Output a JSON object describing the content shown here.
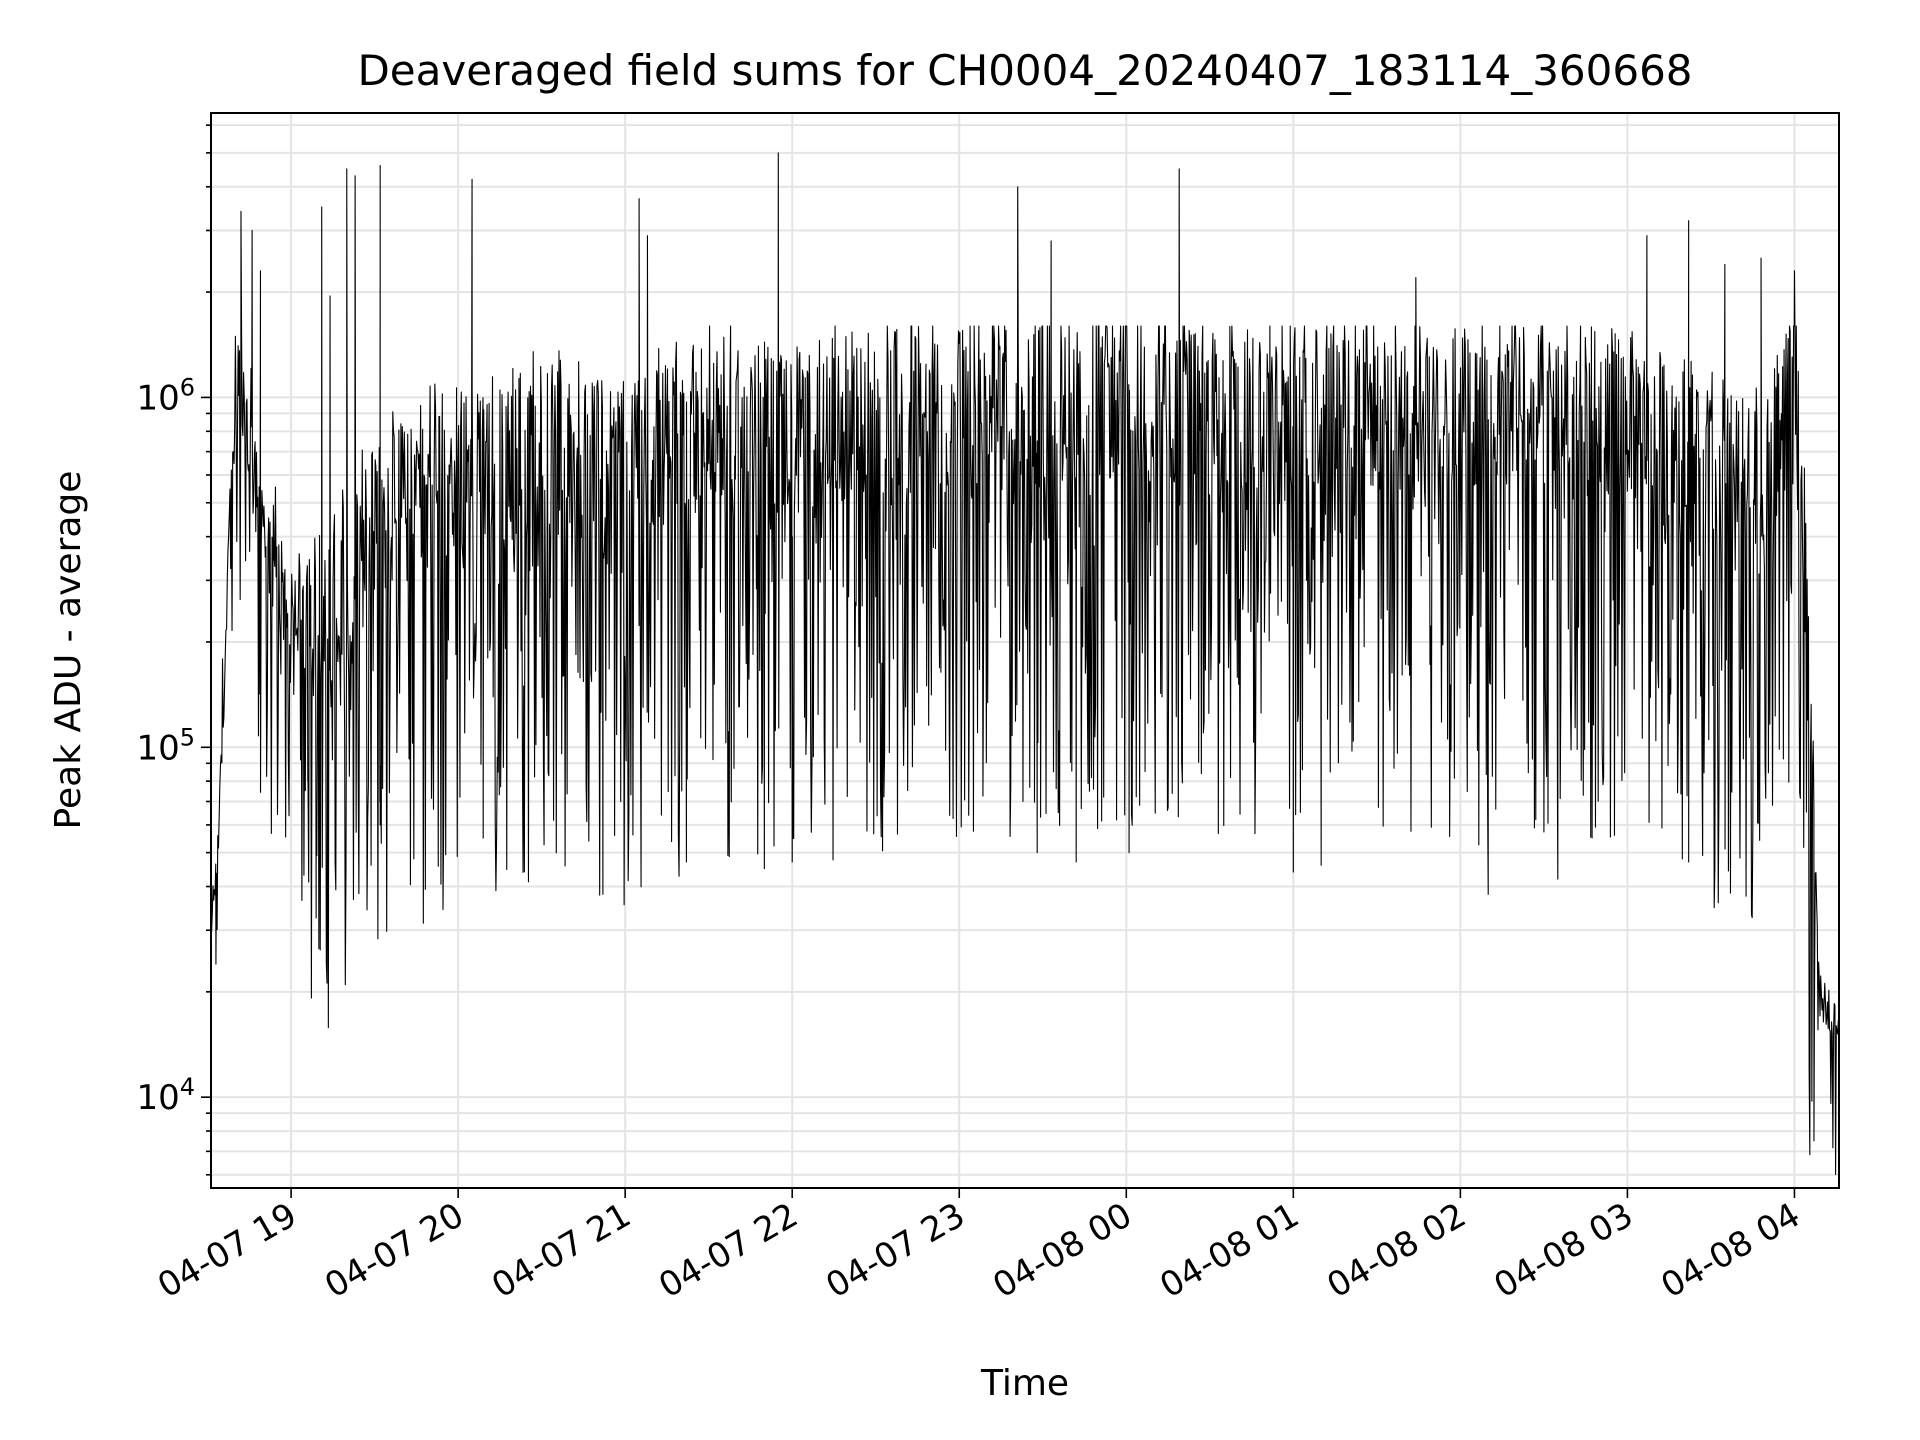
{
  "chart_data": {
    "type": "line",
    "title": "Deaveraged field sums for CH0004_20240407_183114_360668",
    "xlabel": "Time",
    "ylabel": "Peak ADU - average",
    "yscale": "log",
    "grid": true,
    "grid_minor": true,
    "line_color": "#000000",
    "xlim": [
      "2024-04-07T18:31:14",
      "2024-04-08T04:16:00"
    ],
    "ylim": [
      5500,
      6500000
    ],
    "x_ticks": [
      {
        "value": "2024-04-07T19:00:00",
        "label": "04-07 19"
      },
      {
        "value": "2024-04-07T20:00:00",
        "label": "04-07 20"
      },
      {
        "value": "2024-04-07T21:00:00",
        "label": "04-07 21"
      },
      {
        "value": "2024-04-07T22:00:00",
        "label": "04-07 22"
      },
      {
        "value": "2024-04-07T23:00:00",
        "label": "04-07 23"
      },
      {
        "value": "2024-04-08T00:00:00",
        "label": "04-08 00"
      },
      {
        "value": "2024-04-08T01:00:00",
        "label": "04-08 01"
      },
      {
        "value": "2024-04-08T02:00:00",
        "label": "04-08 02"
      },
      {
        "value": "2024-04-08T03:00:00",
        "label": "04-08 03"
      },
      {
        "value": "2024-04-08T04:00:00",
        "label": "04-08 04"
      }
    ],
    "y_ticks": [
      {
        "value": 10000,
        "base": "10",
        "exp": "4"
      },
      {
        "value": 100000,
        "base": "10",
        "exp": "5"
      },
      {
        "value": 1000000,
        "base": "10",
        "exp": "6"
      }
    ],
    "series": [
      {
        "trend": [
          [
            "2024-04-07T18:31:14",
            30000
          ],
          [
            "2024-04-07T18:34:00",
            60000
          ],
          [
            "2024-04-07T18:36:00",
            150000
          ],
          [
            "2024-04-07T18:38:00",
            500000
          ],
          [
            "2024-04-07T18:41:00",
            1100000
          ],
          [
            "2024-04-07T18:44:00",
            900000
          ],
          [
            "2024-04-07T18:48:00",
            500000
          ],
          [
            "2024-04-07T18:53:00",
            350000
          ],
          [
            "2024-04-07T19:00:00",
            260000
          ],
          [
            "2024-04-07T19:08:00",
            250000
          ],
          [
            "2024-04-07T19:30:00",
            500000
          ],
          [
            "2024-04-07T20:00:00",
            700000
          ],
          [
            "2024-04-07T20:30:00",
            800000
          ],
          [
            "2024-04-07T21:00:00",
            700000
          ],
          [
            "2024-04-07T21:30:00",
            950000
          ],
          [
            "2024-04-07T22:00:00",
            900000
          ],
          [
            "2024-04-07T22:30:00",
            1000000
          ],
          [
            "2024-04-07T23:00:00",
            1050000
          ],
          [
            "2024-04-07T23:30:00",
            1100000
          ],
          [
            "2024-04-08T00:00:00",
            1150000
          ],
          [
            "2024-04-08T00:30:00",
            1100000
          ],
          [
            "2024-04-08T01:00:00",
            1100000
          ],
          [
            "2024-04-08T01:30:00",
            1050000
          ],
          [
            "2024-04-08T02:00:00",
            1050000
          ],
          [
            "2024-04-08T02:30:00",
            1050000
          ],
          [
            "2024-04-08T03:00:00",
            1000000
          ],
          [
            "2024-04-08T03:30:00",
            700000
          ],
          [
            "2024-04-08T03:50:00",
            600000
          ],
          [
            "2024-04-08T04:00:00",
            1500000
          ],
          [
            "2024-04-08T04:03:00",
            600000
          ],
          [
            "2024-04-08T04:06:00",
            100000
          ],
          [
            "2024-04-08T04:09:00",
            20000
          ],
          [
            "2024-04-08T04:16:00",
            17000
          ]
        ],
        "spikes": [
          [
            "2024-04-07T18:42:00",
            3400000
          ],
          [
            "2024-04-07T18:46:00",
            3000000
          ],
          [
            "2024-04-07T18:49:00",
            2300000
          ],
          [
            "2024-04-07T19:11:00",
            3500000
          ],
          [
            "2024-04-07T19:14:00",
            1950000
          ],
          [
            "2024-04-07T19:20:00",
            4500000
          ],
          [
            "2024-04-07T19:23:00",
            4300000
          ],
          [
            "2024-04-07T19:32:00",
            4600000
          ],
          [
            "2024-04-07T20:05:00",
            4200000
          ],
          [
            "2024-04-07T21:05:00",
            3700000
          ],
          [
            "2024-04-07T21:08:00",
            2900000
          ],
          [
            "2024-04-07T21:55:00",
            5000000
          ],
          [
            "2024-04-07T23:21:00",
            4000000
          ],
          [
            "2024-04-07T23:33:00",
            2800000
          ],
          [
            "2024-04-08T00:19:00",
            4500000
          ],
          [
            "2024-04-08T01:44:00",
            2200000
          ],
          [
            "2024-04-08T03:07:00",
            2900000
          ],
          [
            "2024-04-08T03:22:00",
            3200000
          ],
          [
            "2024-04-08T03:35:00",
            2400000
          ],
          [
            "2024-04-08T03:48:00",
            2500000
          ],
          [
            "2024-04-08T04:00:00",
            2300000
          ]
        ],
        "dips": [
          [
            "2024-04-07T18:33:00",
            24000
          ],
          [
            "2024-04-07T19:06:00",
            80000
          ],
          [
            "2024-04-07T19:09:00",
            65000
          ],
          [
            "2024-04-07T19:32:00",
            60000
          ],
          [
            "2024-04-07T20:09:00",
            55000
          ],
          [
            "2024-04-07T20:52:00",
            38000
          ],
          [
            "2024-04-07T21:22:00",
            47000
          ],
          [
            "2024-04-07T21:50:00",
            45000
          ],
          [
            "2024-04-07T22:00:00",
            47000
          ],
          [
            "2024-04-07T23:28:00",
            50000
          ],
          [
            "2024-04-07T23:42:00",
            47000
          ],
          [
            "2024-04-08T00:01:00",
            50000
          ],
          [
            "2024-04-08T01:00:00",
            44000
          ],
          [
            "2024-04-08T01:10:00",
            46000
          ],
          [
            "2024-04-08T02:10:00",
            38000
          ],
          [
            "2024-04-08T02:35:00",
            42000
          ],
          [
            "2024-04-08T03:22:00",
            47000
          ],
          [
            "2024-04-08T04:07:00",
            7500
          ]
        ]
      }
    ]
  }
}
